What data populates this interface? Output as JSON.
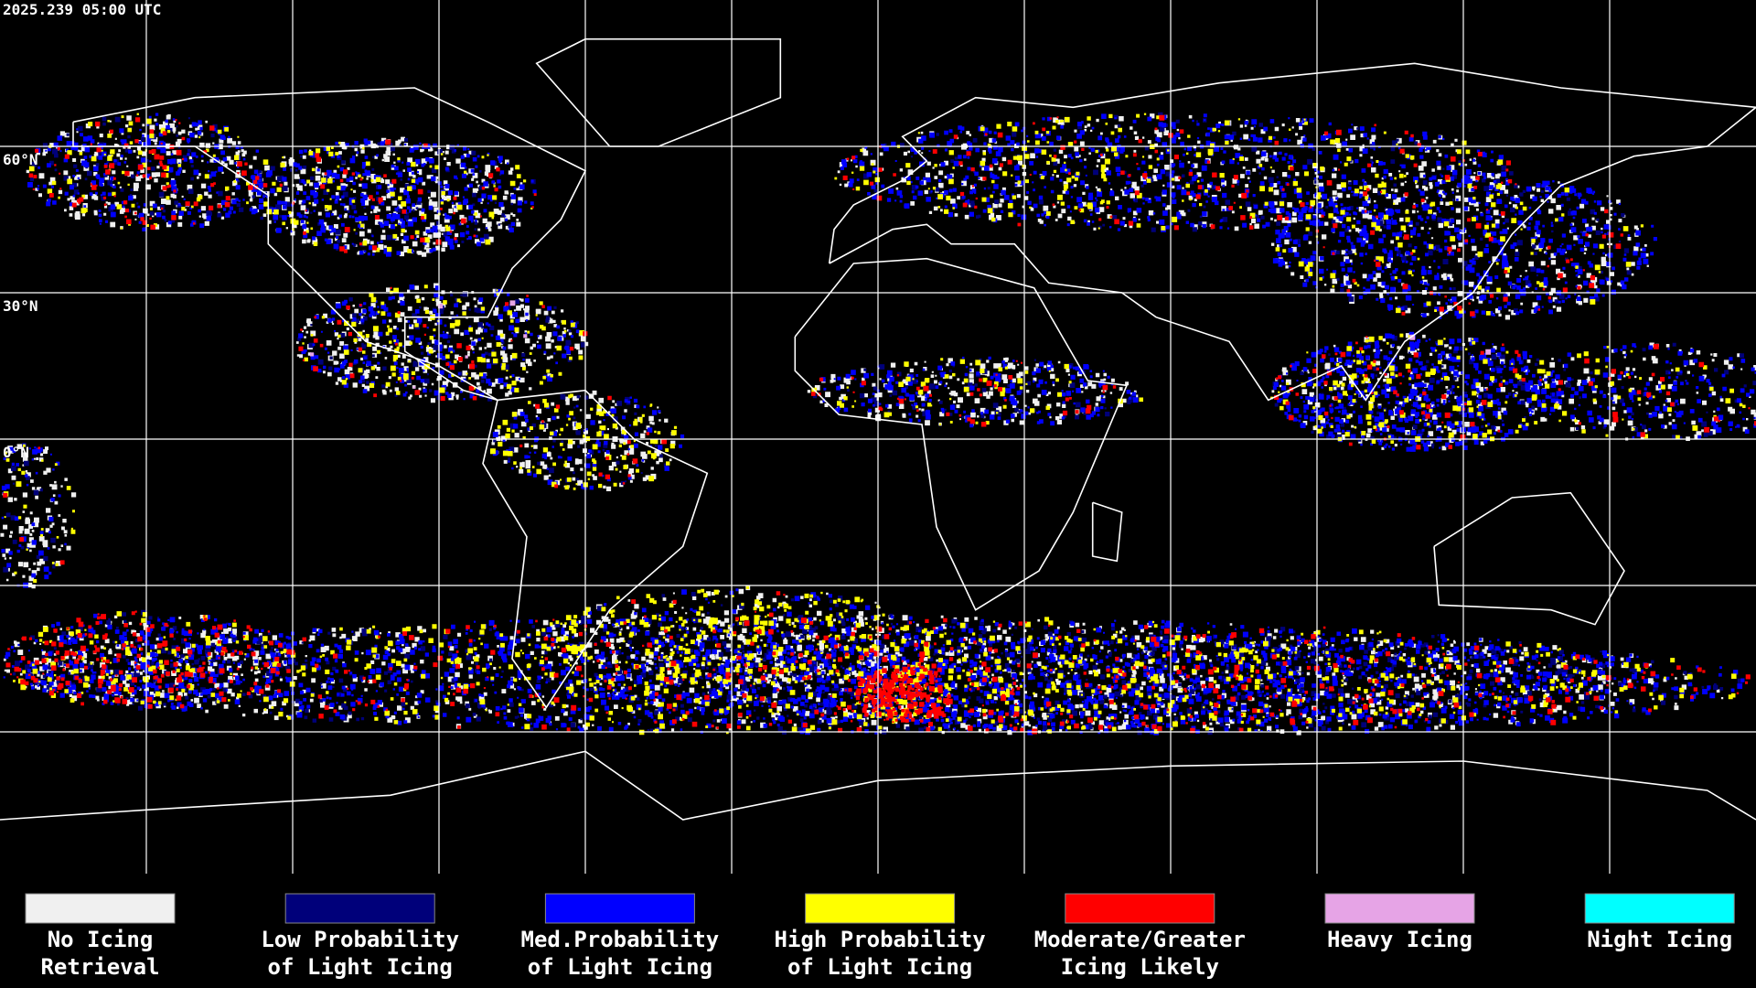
{
  "header": {
    "timestamp": "2025.239 05:00 UTC"
  },
  "map": {
    "latitude_labels": [
      "60°N",
      "30°N",
      "0°N"
    ]
  },
  "legend": [
    {
      "lines": [
        "No Icing",
        "Retrieval"
      ],
      "color": "#f0f0f0"
    },
    {
      "lines": [
        "Low Probability",
        "of Light Icing"
      ],
      "color": "#00007a"
    },
    {
      "lines": [
        "Med.Probability",
        "of Light Icing"
      ],
      "color": "#0000ff"
    },
    {
      "lines": [
        "High Probability",
        "of Light Icing"
      ],
      "color": "#ffff00"
    },
    {
      "lines": [
        "Moderate/Greater",
        "Icing Likely"
      ],
      "color": "#ff0000"
    },
    {
      "lines": [
        "Heavy Icing"
      ],
      "color": "#e6a4e6"
    },
    {
      "lines": [
        "Night Icing"
      ],
      "color": "#00ffff"
    }
  ]
}
